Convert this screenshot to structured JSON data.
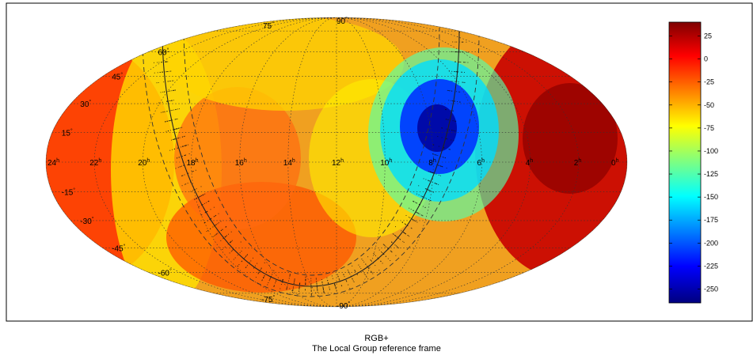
{
  "chart_data": {
    "type": "heatmap",
    "projection": "mollweide",
    "title": "RGB+",
    "subtitle": "The Local Group reference frame",
    "ra_hour_labels": [
      {
        "text": "24",
        "unit": "h"
      },
      {
        "text": "22",
        "unit": "h"
      },
      {
        "text": "20",
        "unit": "h"
      },
      {
        "text": "18",
        "unit": "h"
      },
      {
        "text": "16",
        "unit": "h"
      },
      {
        "text": "14",
        "unit": "h"
      },
      {
        "text": "12",
        "unit": "h"
      },
      {
        "text": "10",
        "unit": "h"
      },
      {
        "text": "8",
        "unit": "h"
      },
      {
        "text": "6",
        "unit": "h"
      },
      {
        "text": "4",
        "unit": "h"
      },
      {
        "text": "2",
        "unit": "h"
      },
      {
        "text": "0",
        "unit": "h"
      }
    ],
    "ra_hour_values": [
      24,
      22,
      20,
      18,
      16,
      14,
      12,
      10,
      8,
      6,
      4,
      2,
      0
    ],
    "dec_labels_left": [
      {
        "text": "90",
        "unit": "°",
        "dec": 90
      },
      {
        "text": "75",
        "unit": "°",
        "dec": 75
      },
      {
        "text": "60",
        "unit": "°",
        "dec": 60
      },
      {
        "text": "45",
        "unit": "°",
        "dec": 45
      },
      {
        "text": "30",
        "unit": "°",
        "dec": 30
      },
      {
        "text": "15",
        "unit": "°",
        "dec": 15
      },
      {
        "text": "0",
        "unit": "°",
        "dec": 0
      },
      {
        "text": "-15",
        "unit": "°",
        "dec": -15
      },
      {
        "text": "-30",
        "unit": "°",
        "dec": -30
      },
      {
        "text": "-45",
        "unit": "°",
        "dec": -45
      },
      {
        "text": "-60",
        "unit": "°",
        "dec": -60
      },
      {
        "text": "-75",
        "unit": "°",
        "dec": -75
      },
      {
        "text": "-90",
        "unit": "°",
        "dec": -90
      }
    ],
    "colorbar": {
      "min": -265,
      "max": 40,
      "ticks": [
        25,
        0,
        -25,
        -50,
        -75,
        -100,
        -125,
        -150,
        -175,
        -200,
        -225,
        -250
      ],
      "tick_labels": [
        "25",
        "0",
        "-25",
        "-50",
        "-75",
        "-100",
        "-125",
        "-150",
        "-175",
        "-200",
        "-225",
        "-250"
      ],
      "colormap": "jet"
    },
    "field_features": [
      {
        "kind": "minimum",
        "ra_hours": 9.0,
        "dec": 15,
        "value": -262
      },
      {
        "kind": "maximum",
        "ra_hours": 1.3,
        "dec": 12,
        "value": 38
      }
    ],
    "grid": true
  }
}
